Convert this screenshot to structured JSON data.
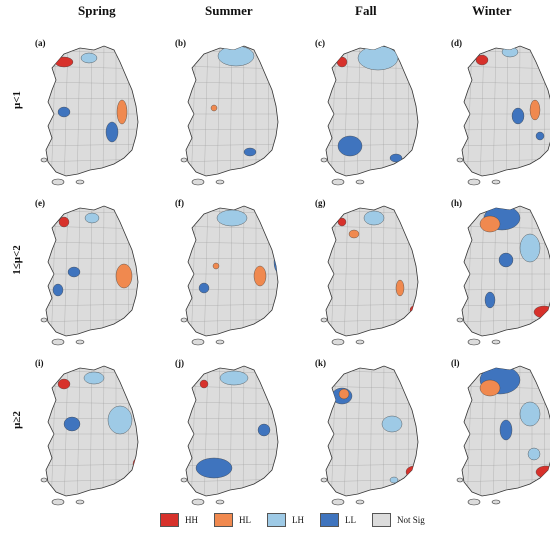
{
  "seasons": [
    "Spring",
    "Summer",
    "Fall",
    "Winter"
  ],
  "rows": [
    "μ<1",
    "1≤μ<2",
    "μ≥2"
  ],
  "panel_labels": [
    "(a)",
    "(b)",
    "(c)",
    "(d)",
    "(e)",
    "(f)",
    "(g)",
    "(h)",
    "(i)",
    "(j)",
    "(k)",
    "(l)"
  ],
  "legend": [
    {
      "label": "HH",
      "color": "#d7312b"
    },
    {
      "label": "HL",
      "color": "#f0894f"
    },
    {
      "label": "LH",
      "color": "#9ecae6"
    },
    {
      "label": "LL",
      "color": "#3f74be"
    },
    {
      "label": "Not Sig",
      "color": "#dcdcdc"
    }
  ],
  "base_color": "#dcdcdc"
}
